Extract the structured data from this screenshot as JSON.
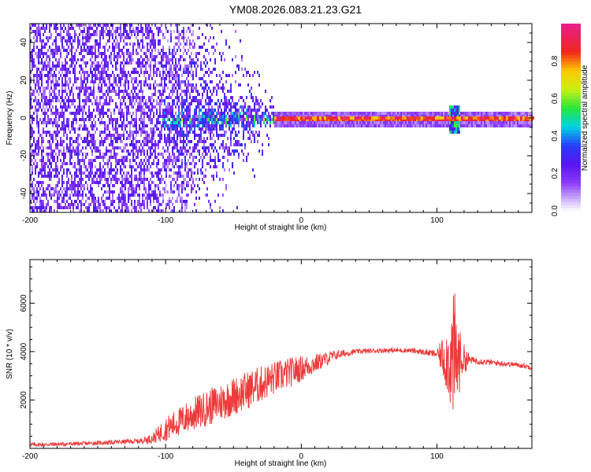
{
  "title": "YM08.2026.083.21.23.G21",
  "colors": {
    "axis": "#000000",
    "snr_line": "#ee3a3a",
    "background": "#ffffff"
  },
  "chart_data": [
    {
      "type": "heatmap",
      "name": "spectrogram",
      "xlabel": "Height of straight line (km)",
      "ylabel": "Frequency (Hz)",
      "xlim": [
        -200,
        170
      ],
      "ylim": [
        -50,
        50
      ],
      "xticks": [
        -200,
        -100,
        0,
        100
      ],
      "yticks": [
        -40,
        -20,
        0,
        20,
        40
      ],
      "colormap": "rainbow (purple-blue-cyan-green-yellow-red-magenta)",
      "colorbar": {
        "label": "Normalized spectral amplitude",
        "range": [
          0,
          1
        ],
        "ticks": [
          "0.0",
          "0.2",
          "0.4",
          "0.6",
          "0.8"
        ]
      },
      "regions": [
        {
          "x_range": [
            -200,
            -100
          ],
          "description": "broadband noise",
          "freq_spread_hz": 50,
          "amplitude": 0.12
        },
        {
          "x_range": [
            -100,
            -20
          ],
          "description": "converging signal",
          "freq_spread_hz": 15,
          "amplitude": 0.3
        },
        {
          "x_range": [
            -20,
            170
          ],
          "description": "narrow carrier near 0 Hz",
          "freq_spread_hz": 2,
          "amplitude": 0.85
        }
      ],
      "disturbance_x": 113
    },
    {
      "type": "line",
      "name": "snr",
      "xlabel": "Height of straight line (km)",
      "ylabel": "SNR (10 * v/v)",
      "xlim": [
        -200,
        170
      ],
      "ylim": [
        0,
        7800
      ],
      "xticks": [
        -200,
        -100,
        0,
        100
      ],
      "yticks": [
        2000,
        4000,
        6000
      ],
      "series": [
        {
          "name": "SNR",
          "x": [
            -200,
            -160,
            -120,
            -110,
            -100,
            -80,
            -60,
            -40,
            -20,
            -5,
            10,
            25,
            40,
            60,
            80,
            100,
            108,
            113,
            118,
            125,
            140,
            160,
            170
          ],
          "y": [
            150,
            200,
            300,
            400,
            800,
            1400,
            1900,
            2400,
            2900,
            3200,
            3500,
            3850,
            4000,
            4050,
            4050,
            3900,
            3700,
            3600,
            3700,
            3650,
            3550,
            3450,
            3350
          ],
          "noise_amplitude": [
            80,
            80,
            100,
            200,
            500,
            700,
            800,
            800,
            700,
            600,
            400,
            200,
            100,
            100,
            100,
            150,
            1500,
            3000,
            800,
            150,
            120,
            100,
            100
          ]
        }
      ]
    }
  ]
}
